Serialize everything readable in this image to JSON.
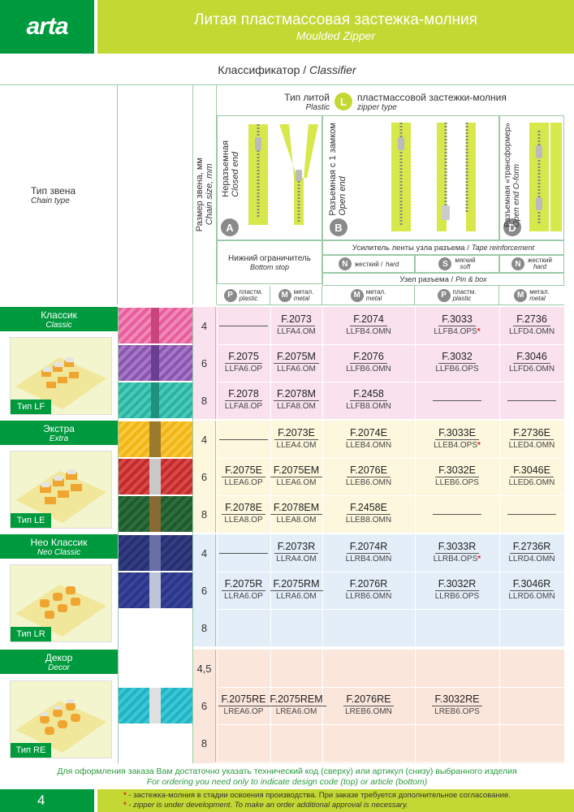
{
  "header": {
    "logo": "arta",
    "title_ru": "Литая пластмассовая застежка-молния",
    "title_en": "Moulded Zipper"
  },
  "classifier": {
    "ru": "Классификатор /",
    "en": "Classifier"
  },
  "chain_type": {
    "ru": "Тип звена",
    "en": "Chain type"
  },
  "chain_size": {
    "ru": "Размер звена, мм",
    "en": "Chain size, mm"
  },
  "zipper_type": {
    "ru1": "Тип литой",
    "en1": "Plastic",
    "ru2": "пластмассовой застежки-молния",
    "en2": "zipper type",
    "letter": "L"
  },
  "variants": [
    {
      "letter": "A",
      "ru": "Неразъемная",
      "en": "Closed end"
    },
    {
      "letter": "B",
      "ru": "Разъемная с 1 замком",
      "en": "Open end"
    },
    {
      "letter": "D",
      "ru": "Разъемная «трансформер»",
      "en": "Open end O-form"
    }
  ],
  "bottom_stop": {
    "ru": "Нижний ограничитель",
    "en": "Bottom stop"
  },
  "tape": {
    "ru": "Усилитель ленты узла разъема /",
    "en": "Tape reinforcement"
  },
  "tape_types": [
    {
      "letter": "N",
      "ru": "жесткий /",
      "en": "hard"
    },
    {
      "letter": "S",
      "ru": "мягкий",
      "en": "soft"
    },
    {
      "letter": "N",
      "ru": "жесткий",
      "en": "hard"
    }
  ],
  "pin_box": {
    "ru": "Узел разъема /",
    "en": "Pin & box"
  },
  "materials": [
    {
      "letter": "P",
      "ru": "пластм.",
      "en": "plastic"
    },
    {
      "letter": "M",
      "ru": "метал.",
      "en": "metal"
    },
    {
      "letter": "M",
      "ru": "метал.",
      "en": "metal"
    },
    {
      "letter": "P",
      "ru": "пластм.",
      "en": "plastic"
    },
    {
      "letter": "M",
      "ru": "метал.",
      "en": "metal"
    }
  ],
  "groups": [
    {
      "ru": "Классик",
      "en": "Classic",
      "tip": "Тип LF"
    },
    {
      "ru": "Экстра",
      "en": "Extra",
      "tip": "Тип LE"
    },
    {
      "ru": "Нео Классик",
      "en": "Neo Classic",
      "tip": "Тип LR"
    },
    {
      "ru": "Декор",
      "en": "Decor",
      "tip": "Тип RE"
    }
  ],
  "sizes": [
    "4",
    "6",
    "8",
    "4",
    "6",
    "8",
    "4",
    "6",
    "8",
    "4,5",
    "6",
    "8"
  ],
  "rows": [
    [
      null,
      {
        "c": "F.2073",
        "a": "LLFA4.OM"
      },
      {
        "c": "F.2074",
        "a": "LLFB4.OMN"
      },
      {
        "c": "F.3033",
        "a": "LLFB4.OPS",
        "s": "*"
      },
      {
        "c": "F.2736",
        "a": "LLFD4.OMN"
      }
    ],
    [
      {
        "c": "F.2075",
        "a": "LLFA6.OP"
      },
      {
        "c": "F.2075M",
        "a": "LLFA6.OM"
      },
      {
        "c": "F.2076",
        "a": "LLFB6.OMN"
      },
      {
        "c": "F.3032",
        "a": "LLFB6.OPS"
      },
      {
        "c": "F.3046",
        "a": "LLFD6.OMN"
      }
    ],
    [
      {
        "c": "F.2078",
        "a": "LLFA8.OP"
      },
      {
        "c": "F.2078M",
        "a": "LLFA8.OM"
      },
      {
        "c": "F.2458",
        "a": "LLFB8.OMN"
      },
      null,
      null
    ],
    [
      null,
      {
        "c": "F.2073E",
        "a": "LLEA4.OM"
      },
      {
        "c": "F.2074E",
        "a": "LLEB4.OMN"
      },
      {
        "c": "F.3033E",
        "a": "LLEB4.OPS",
        "s": "*"
      },
      {
        "c": "F.2736E",
        "a": "LLED4.OMN"
      }
    ],
    [
      {
        "c": "F.2075E",
        "a": "LLEA6.OP"
      },
      {
        "c": "F.2075EM",
        "a": "LLEA6.OM"
      },
      {
        "c": "F.2076E",
        "a": "LLEB6.OMN"
      },
      {
        "c": "F.3032E",
        "a": "LLEB6.OPS"
      },
      {
        "c": "F.3046E",
        "a": "LLED6.OMN"
      }
    ],
    [
      {
        "c": "F.2078E",
        "a": "LLEA8.OP"
      },
      {
        "c": "F.2078EM",
        "a": "LLEA8.OM"
      },
      {
        "c": "F.2458E",
        "a": "LLEB8.OMN"
      },
      null,
      null
    ],
    [
      null,
      {
        "c": "F.2073R",
        "a": "LLRA4.OM"
      },
      {
        "c": "F.2074R",
        "a": "LLRB4.OMN"
      },
      {
        "c": "F.3033R",
        "a": "LLRB4.OPS",
        "s": "*"
      },
      {
        "c": "F.2736R",
        "a": "LLRD4.OMN"
      }
    ],
    [
      {
        "c": "F.2075R",
        "a": "LLRA6.OP"
      },
      {
        "c": "F.2075RM",
        "a": "LLRA6.OM"
      },
      {
        "c": "F.2076R",
        "a": "LLRB6.OMN"
      },
      {
        "c": "F.3032R",
        "a": "LLRB6.OPS"
      },
      {
        "c": "F.3046R",
        "a": "LLRD6.OMN"
      }
    ],
    [],
    [],
    [
      {
        "c": "F.2075RE",
        "a": "LREA6.OP"
      },
      {
        "c": "F.2075REM",
        "a": "LREA6.OM"
      },
      {
        "c": "F.2076RE",
        "a": "LREB6.OMN"
      },
      {
        "c": "F.3032RE",
        "a": "LREB6.OPS"
      },
      "empty"
    ],
    []
  ],
  "footer": {
    "order_ru": "Для оформления заказа Вам достаточно указать технический код (сверху) или артикул (снизу) выбранного изделия",
    "order_en": "For ordering you need only to indicate design code (top) or article (bottom)",
    "note_ru": "- застежка-молния в стадии освоения производства. При заказе требуется дополнительное согласование.",
    "note_en": "- zipper is under development. To make an order additional approval is necessary.",
    "star": "*",
    "page": "4"
  },
  "colors": {
    "green": "#009a3e",
    "lime": "#c3d833",
    "pink": "#f9e2ee",
    "yellow": "#fdf8dd",
    "blue": "#e3eef8",
    "peach": "#fbe6dc"
  }
}
